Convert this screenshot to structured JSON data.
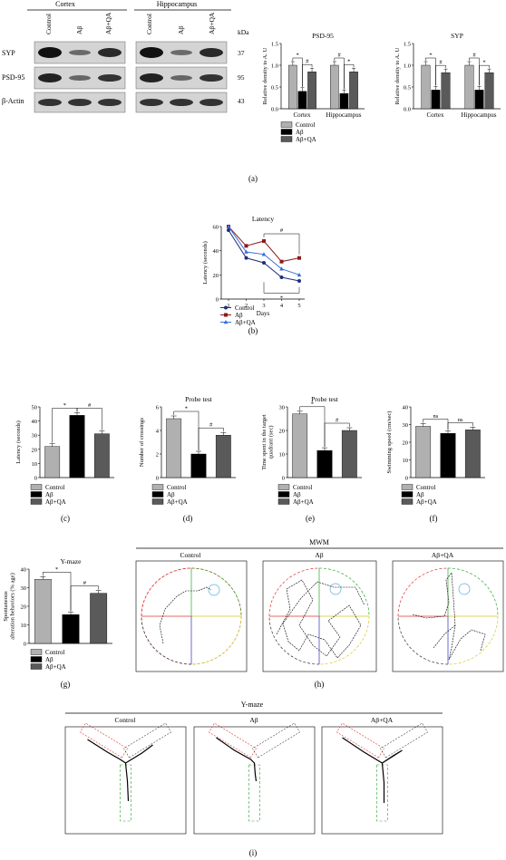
{
  "panel_labels": {
    "a": "(a)",
    "b": "(b)",
    "c": "(c)",
    "d": "(d)",
    "e": "(e)",
    "f": "(f)",
    "g": "(g)",
    "h": "(h)",
    "i": "(i)"
  },
  "blot": {
    "groups": [
      "Cortex",
      "Hippocampus"
    ],
    "lanes": [
      "Control",
      "Aβ",
      "Aβ+QA"
    ],
    "kda_label": "kDa",
    "rows": [
      {
        "name": "SYP",
        "kda": "37"
      },
      {
        "name": "PSD-95",
        "kda": "95"
      },
      {
        "name": "β-Actin",
        "kda": "43"
      }
    ]
  },
  "legend_items": [
    "Control",
    "Aβ",
    "Aβ+QA"
  ],
  "colors": {
    "control": "#b0b0b0",
    "abeta": "#000000",
    "abqa": "#5a5a5a",
    "line_control": "#1f2f7a",
    "line_abeta": "#8b1a1a",
    "line_abqa": "#3a6fd8"
  },
  "mwm": {
    "title": "MWM",
    "groups": [
      "Control",
      "Aβ",
      "Aβ+QA"
    ]
  },
  "ymaze_tracks": {
    "title": "Y-maze",
    "groups": [
      "Control",
      "Aβ",
      "Aβ+QA"
    ]
  },
  "chart_data": [
    {
      "id": "psd95",
      "type": "bar",
      "title": "PSD-95",
      "ylabel": "Relative density to A. U",
      "ylim": [
        0,
        1.5
      ],
      "yticks": [
        "0.0",
        "0.5",
        "1.0",
        "1.5"
      ],
      "categories": [
        "Cortex",
        "Hippocampus"
      ],
      "series": [
        {
          "name": "Control",
          "values": [
            1.0,
            1.0
          ]
        },
        {
          "name": "Aβ",
          "values": [
            0.4,
            0.35
          ]
        },
        {
          "name": "Aβ+QA",
          "values": [
            0.85,
            0.85
          ]
        }
      ],
      "annotations": [
        "*",
        "#",
        "#",
        "*"
      ]
    },
    {
      "id": "syp",
      "type": "bar",
      "title": "SYP",
      "ylabel": "Relative density to A. U",
      "ylim": [
        0,
        1.5
      ],
      "yticks": [
        "0.0",
        "0.5",
        "1.0",
        "1.5"
      ],
      "categories": [
        "Cortex",
        "Hippocampus"
      ],
      "series": [
        {
          "name": "Control",
          "values": [
            1.0,
            1.0
          ]
        },
        {
          "name": "Aβ",
          "values": [
            0.43,
            0.43
          ]
        },
        {
          "name": "Aβ+QA",
          "values": [
            0.83,
            0.83
          ]
        }
      ],
      "annotations": [
        "*",
        "#",
        "#",
        "*"
      ]
    },
    {
      "id": "latency_line",
      "type": "line",
      "title": "Latency",
      "xlabel": "Days",
      "ylabel": "Latency (seconds)",
      "ylim": [
        0,
        60
      ],
      "yticks": [
        "0",
        "20",
        "40",
        "60"
      ],
      "x": [
        1,
        2,
        3,
        4,
        5
      ],
      "series": [
        {
          "name": "Control",
          "values": [
            57,
            34,
            30,
            18,
            15
          ]
        },
        {
          "name": "Aβ",
          "values": [
            60,
            44,
            48,
            31,
            34
          ]
        },
        {
          "name": "Aβ+QA",
          "values": [
            60,
            39,
            37,
            25,
            20
          ]
        }
      ],
      "annotations": [
        "#",
        "*"
      ]
    },
    {
      "id": "latency_bar",
      "type": "bar",
      "title": "",
      "ylabel": "Latency (seconds)",
      "ylim": [
        0,
        50
      ],
      "yticks": [
        "0",
        "10",
        "20",
        "30",
        "40",
        "50"
      ],
      "categories": [
        "Control",
        "Aβ",
        "Aβ+QA"
      ],
      "values": [
        22,
        44,
        31
      ],
      "annotations": [
        "*",
        "#"
      ]
    },
    {
      "id": "crossings",
      "type": "bar",
      "title": "Probe test",
      "ylabel": "Number of crossings",
      "ylim": [
        0,
        6
      ],
      "yticks": [
        "0",
        "2",
        "4",
        "6"
      ],
      "categories": [
        "Control",
        "Aβ",
        "Aβ+QA"
      ],
      "values": [
        5.0,
        2.0,
        3.6
      ],
      "annotations": [
        "*",
        "#"
      ]
    },
    {
      "id": "time_target",
      "type": "bar",
      "title": "Probe test",
      "ylabel": "Time spent in the target quadrant (sec)",
      "ylim": [
        0,
        30
      ],
      "yticks": [
        "0",
        "10",
        "20",
        "30"
      ],
      "categories": [
        "Control",
        "Aβ",
        "Aβ+QA"
      ],
      "values": [
        27,
        11.5,
        20
      ],
      "annotations": [
        "*",
        "#"
      ]
    },
    {
      "id": "swim_speed",
      "type": "bar",
      "title": "",
      "ylabel": "Swimming speed (cm/sec)",
      "ylim": [
        0,
        40
      ],
      "yticks": [
        "0",
        "10",
        "20",
        "30",
        "40"
      ],
      "categories": [
        "Control",
        "Aβ",
        "Aβ+QA"
      ],
      "values": [
        29,
        25,
        27
      ],
      "annotations": [
        "ns",
        "ns"
      ]
    },
    {
      "id": "ymaze_bar",
      "type": "bar",
      "title": "Y-maze",
      "ylabel": "Spontaneous alteration behaviors (% age)",
      "ylim": [
        0,
        40
      ],
      "yticks": [
        "0",
        "10",
        "20",
        "30",
        "40"
      ],
      "categories": [
        "Control",
        "Aβ",
        "Aβ+QA"
      ],
      "values": [
        34.5,
        15.5,
        27
      ],
      "annotations": [
        "*",
        "#"
      ]
    }
  ]
}
